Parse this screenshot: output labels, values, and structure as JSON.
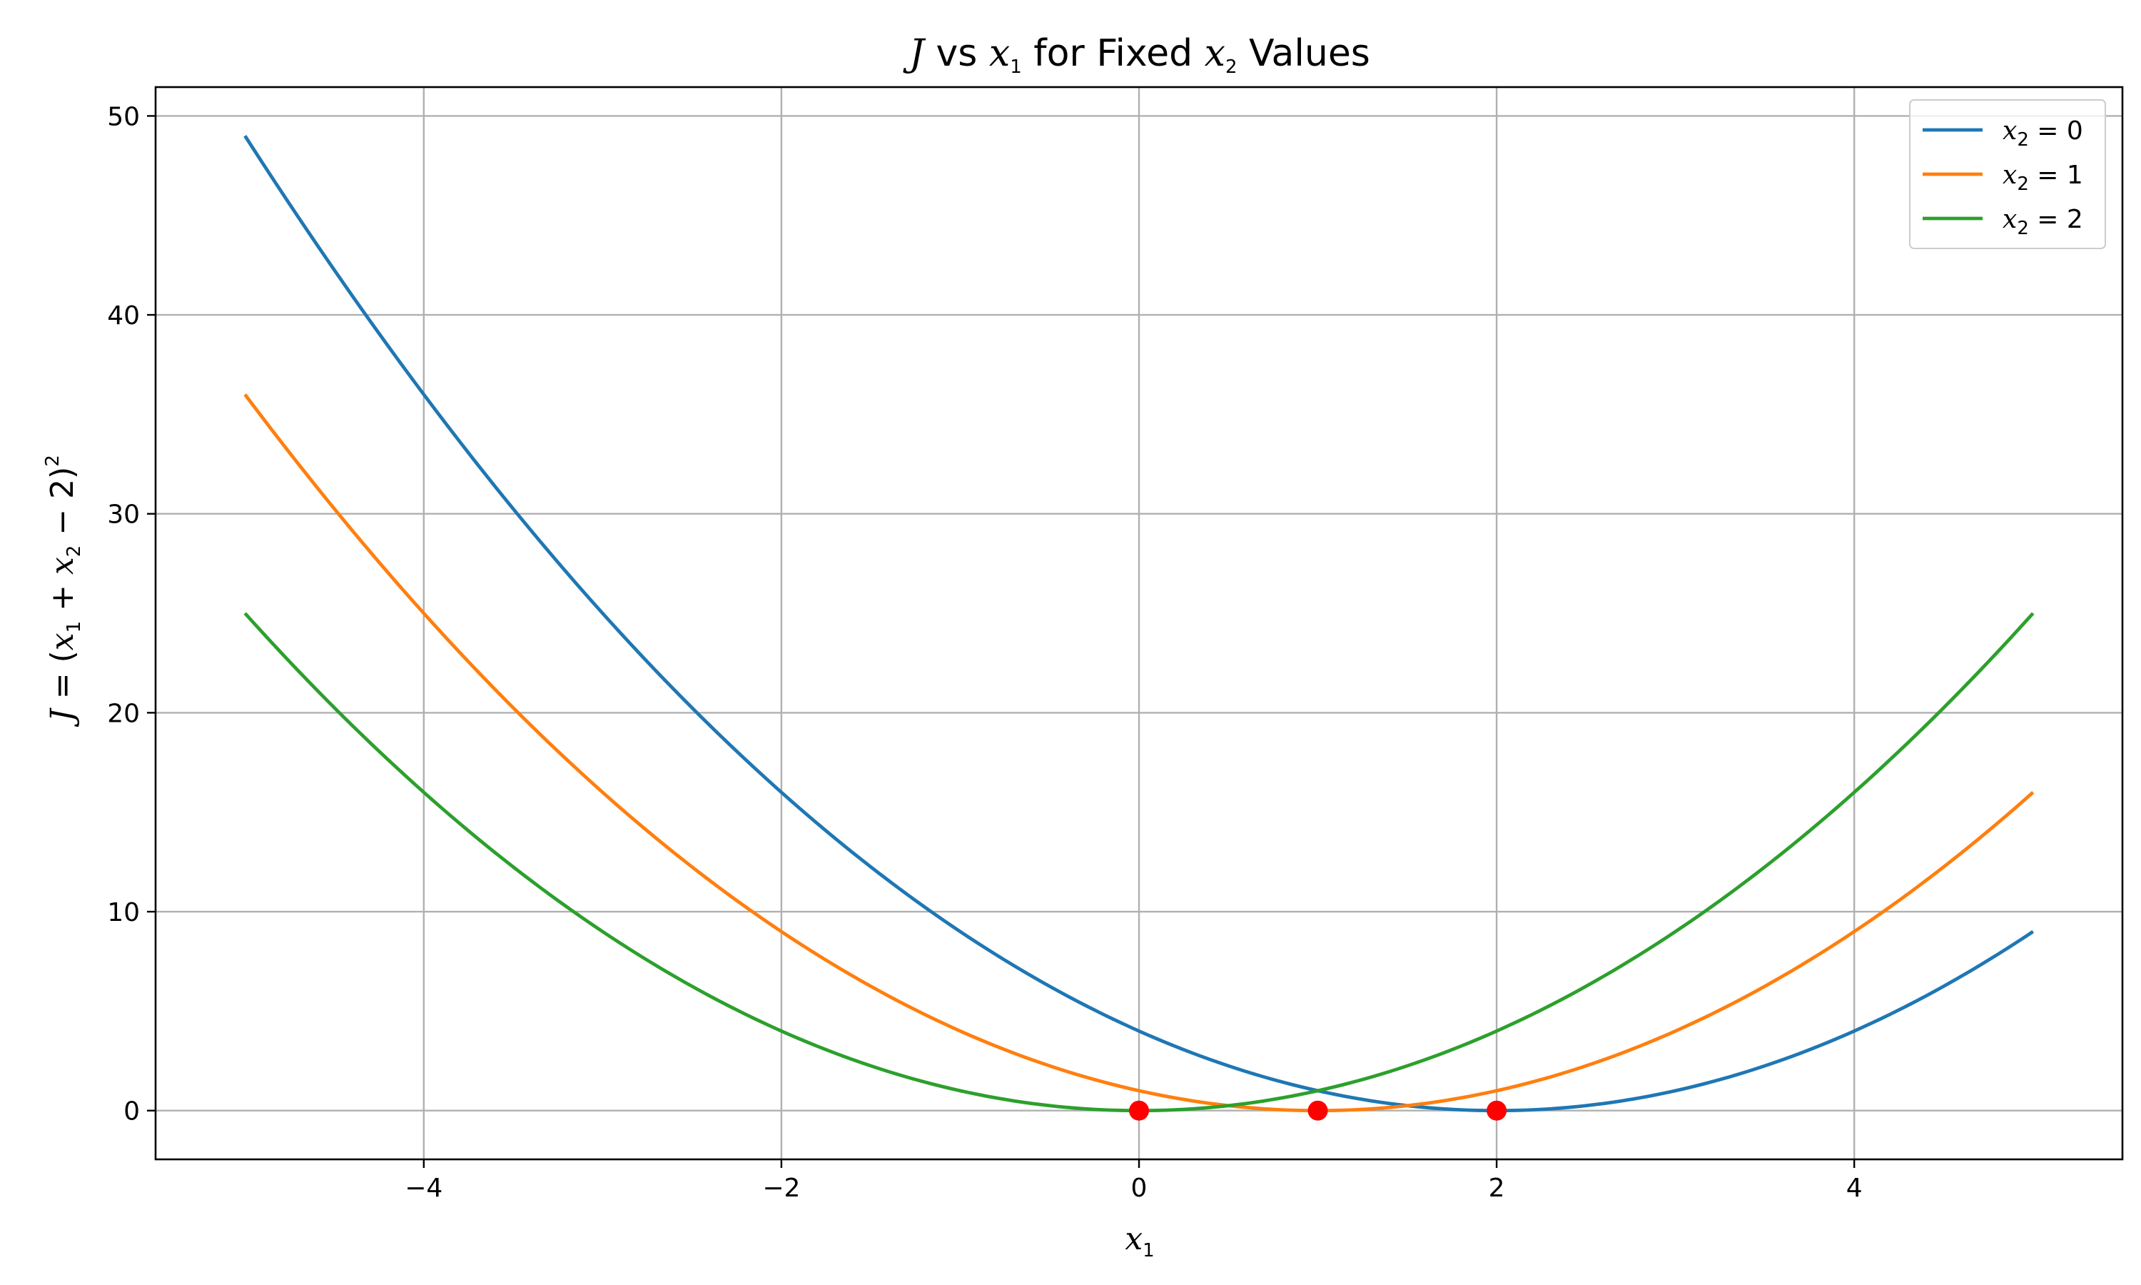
{
  "chart_data": {
    "type": "line",
    "title": {
      "pre_var": "J",
      "mid": " vs ",
      "x_var": "x",
      "x_sub": "1",
      "for_text": " for Fixed ",
      "x2_var": "x",
      "x2_sub": "2",
      "post": " Values"
    },
    "xlabel": {
      "var": "x",
      "sub": "1"
    },
    "ylabel": {
      "p1": "J",
      "p2": " = (",
      "p3": "x",
      "p4": "1",
      "p5": " + ",
      "p6": "x",
      "p7": "2",
      "p8": " − 2)",
      "p9": "2"
    },
    "xlim": [
      -5.5,
      5.5
    ],
    "ylim": [
      -2.45,
      51.45
    ],
    "xticks": [
      -4,
      -2,
      0,
      2,
      4
    ],
    "xtick_labels": [
      "−4",
      "−2",
      "0",
      "2",
      "4"
    ],
    "yticks": [
      0,
      10,
      20,
      30,
      40,
      50
    ],
    "ytick_labels": [
      "0",
      "10",
      "20",
      "30",
      "40",
      "50"
    ],
    "grid": true,
    "legend_position": "top-right",
    "x_range": [
      -5,
      5
    ],
    "series": [
      {
        "name": "x₂ = 0",
        "legend_var": "x",
        "legend_sub": "2",
        "legend_val": " = 0",
        "x2": 0,
        "color": "#1f77b4",
        "formula": "(x1 + 0 - 2)^2"
      },
      {
        "name": "x₂ = 1",
        "legend_var": "x",
        "legend_sub": "2",
        "legend_val": " = 1",
        "x2": 1,
        "color": "#ff7f0e",
        "formula": "(x1 + 1 - 2)^2"
      },
      {
        "name": "x₂ = 2",
        "legend_var": "x",
        "legend_sub": "2",
        "legend_val": " = 2",
        "x2": 2,
        "color": "#2ca02c",
        "formula": "(x1 + 2 - 2)^2"
      }
    ],
    "minima_points": [
      {
        "x": 2,
        "y": 0
      },
      {
        "x": 1,
        "y": 0
      },
      {
        "x": 0,
        "y": 0
      }
    ],
    "marker_color": "#ff0000"
  }
}
